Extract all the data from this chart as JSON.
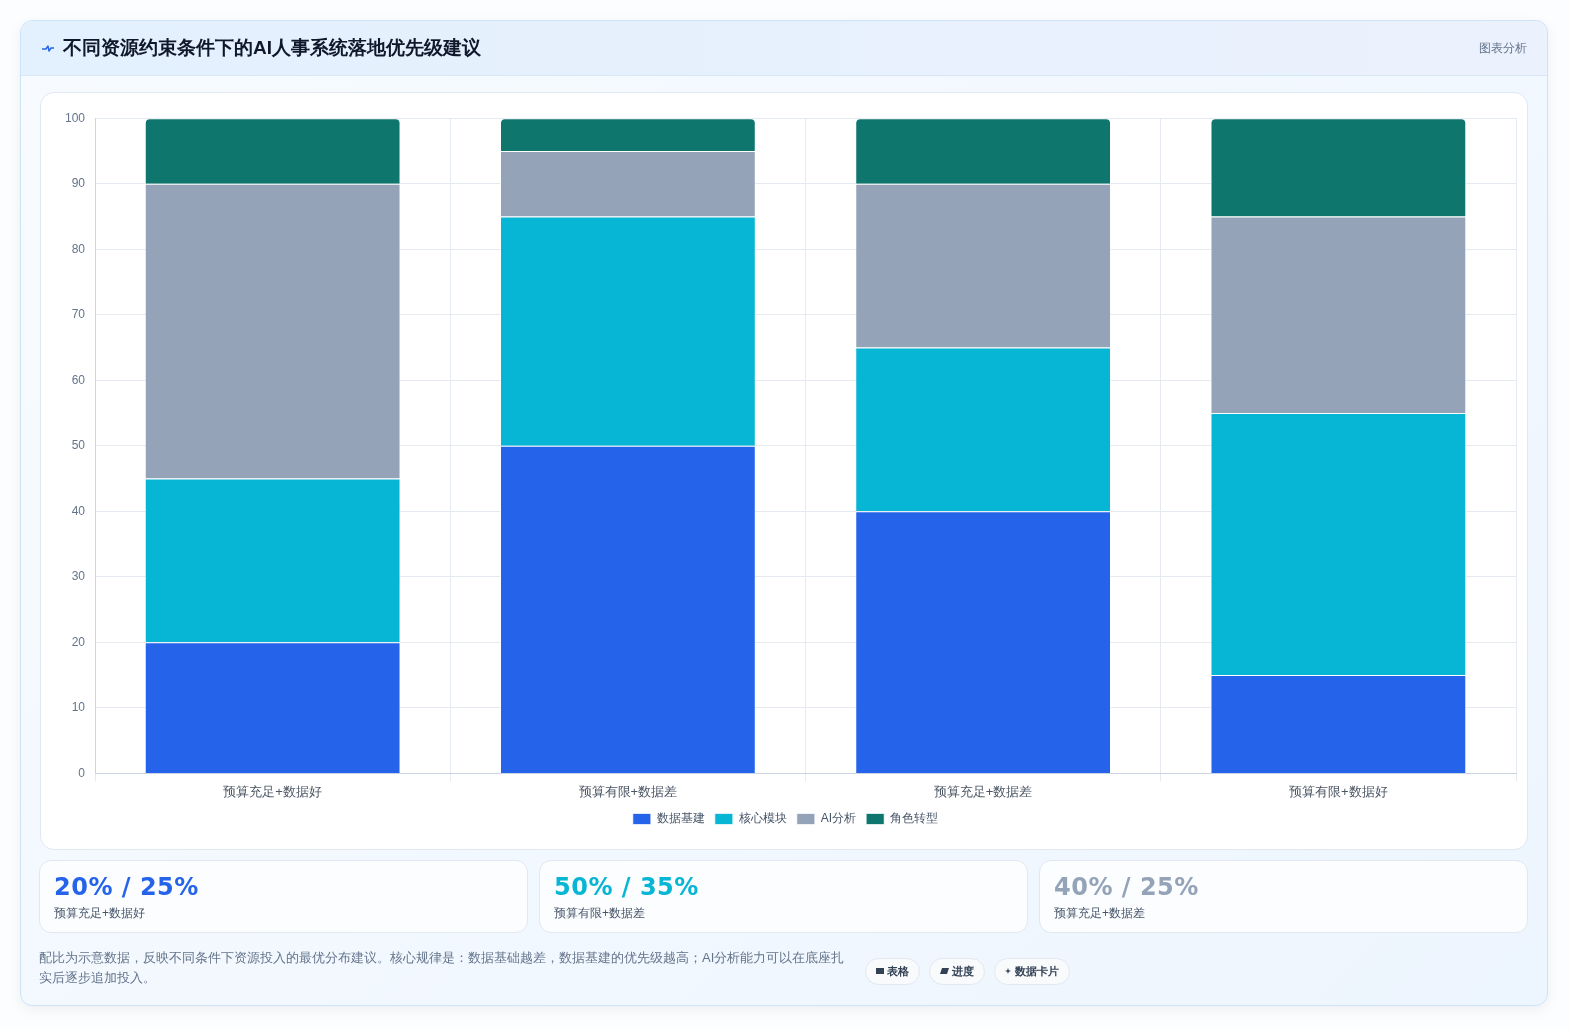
{
  "chart_data": [
    {
      "type": "bar",
      "title": "不同资源约束条件下的AI人事系统落地优先级建议",
      "categories": [
        "预算充足+数据好",
        "预算有限+数据差",
        "预算充足+数据差",
        "预算有限+数据好"
      ],
      "series": [
        {
          "name": "数据基建",
          "color": "#2563eb",
          "values": [
            20,
            50,
            40,
            15
          ]
        },
        {
          "name": "核心模块",
          "color": "#06b6d4",
          "values": [
            25,
            35,
            25,
            40
          ]
        },
        {
          "name": "AI分析",
          "color": "#94a3b8",
          "values": [
            45,
            10,
            25,
            30
          ]
        },
        {
          "name": "角色转型",
          "color": "#0f766e",
          "values": [
            10,
            5,
            10,
            15
          ]
        }
      ],
      "stacked": true,
      "ylim": [
        0,
        100
      ],
      "yticks": [
        0,
        10,
        20,
        30,
        40,
        50,
        60,
        70,
        80,
        90,
        100
      ],
      "grid": true,
      "legend": "bottom",
      "annotations": [
        "图表分析"
      ]
    },
    {
      "type": "other",
      "colors": [
        "#2563eb",
        "#06b6d4",
        "#94a3b8"
      ],
      "annotations": [
        "20% / 25%",
        "预算充足+数据好",
        "50% / 35%",
        "预算有限+数据差",
        "40% / 25%",
        "预算充足+数据差",
        "配比为示意数据，反映不同条件下资源投入的最优分布建议。核心规律是：数据基础越差，数据基建的优先级越高；AI分析能力可以在底座扎实后逐步追加投入。",
        "表格",
        "进度",
        "数据卡片"
      ]
    }
  ]
}
